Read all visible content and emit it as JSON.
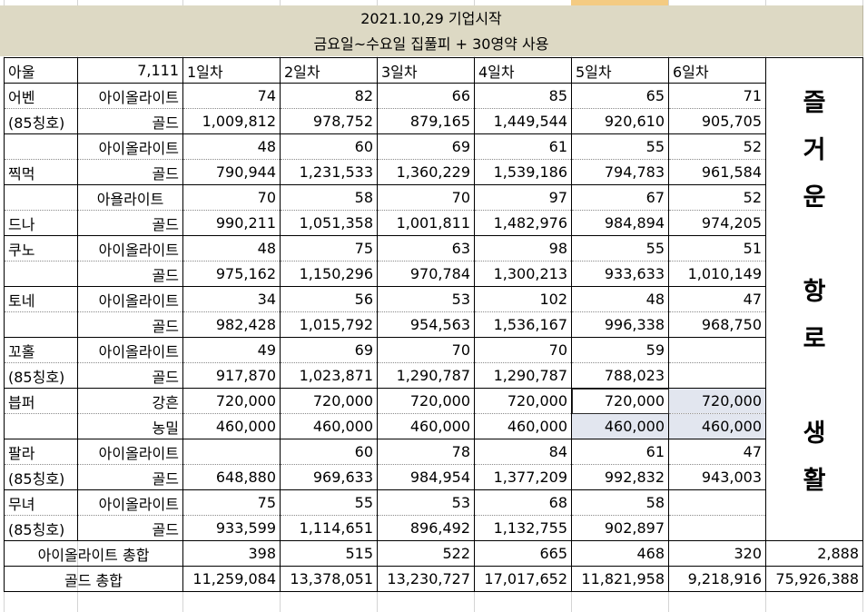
{
  "header": {
    "line1": "2021.10,29 기업시작",
    "line2": "금요일~수요일 집풀피 + 30영약 사용"
  },
  "top_row": {
    "name": "아울",
    "value": "7,111",
    "days": [
      "1일차",
      "2일차",
      "3일차",
      "4일차",
      "5일차",
      "6일차"
    ]
  },
  "side_text": [
    "즐",
    "거",
    "운",
    "",
    "항",
    "로",
    "",
    "생",
    "활"
  ],
  "rows": [
    {
      "name": "어벤",
      "label": "아이올라이트",
      "vals": [
        "74",
        "82",
        "66",
        "85",
        "65",
        "71"
      ]
    },
    {
      "name": "(85칭호)",
      "label": "골드",
      "vals": [
        "1,009,812",
        "978,752",
        "879,165",
        "1,449,544",
        "920,610",
        "905,705"
      ]
    },
    {
      "name": "",
      "label": "아이올라이트",
      "vals": [
        "48",
        "60",
        "69",
        "61",
        "55",
        "52"
      ]
    },
    {
      "name": "찍먹",
      "label": "골드",
      "vals": [
        "790,944",
        "1,231,533",
        "1,360,229",
        "1,539,186",
        "794,783",
        "961,584"
      ]
    },
    {
      "name": "",
      "label": "아욜라이트",
      "vals": [
        "70",
        "58",
        "70",
        "97",
        "67",
        "52"
      ]
    },
    {
      "name": "드나",
      "label": "골드",
      "vals": [
        "990,211",
        "1,051,358",
        "1,001,811",
        "1,482,976",
        "984,894",
        "974,205"
      ]
    },
    {
      "name": "쿠노",
      "label": "아이올라이트",
      "vals": [
        "48",
        "75",
        "63",
        "98",
        "55",
        "51"
      ]
    },
    {
      "name": "",
      "label": "골드",
      "vals": [
        "975,162",
        "1,150,296",
        "970,784",
        "1,300,213",
        "933,633",
        "1,010,149"
      ]
    },
    {
      "name": "토네",
      "label": "아이올라이트",
      "vals": [
        "34",
        "56",
        "53",
        "102",
        "48",
        "47"
      ]
    },
    {
      "name": "",
      "label": "골드",
      "vals": [
        "982,428",
        "1,015,792",
        "954,563",
        "1,536,167",
        "996,338",
        "968,750"
      ]
    },
    {
      "name": "꼬홀",
      "label": "아이올라이트",
      "vals": [
        "49",
        "69",
        "70",
        "70",
        "59",
        ""
      ]
    },
    {
      "name": "(85칭호)",
      "label": "골드",
      "vals": [
        "917,870",
        "1,023,871",
        "1,290,787",
        "1,290,787",
        "788,023",
        ""
      ]
    },
    {
      "name": "븝퍼",
      "label": "강흔",
      "vals": [
        "720,000",
        "720,000",
        "720,000",
        "720,000",
        "720,000",
        "720,000"
      ]
    },
    {
      "name": "",
      "label": "농밀",
      "vals": [
        "460,000",
        "460,000",
        "460,000",
        "460,000",
        "460,000",
        "460,000"
      ]
    },
    {
      "name": "팔라",
      "label": "아이올라이트",
      "vals": [
        "",
        "60",
        "78",
        "84",
        "61",
        "47"
      ]
    },
    {
      "name": "(85칭호)",
      "label": "골드",
      "vals": [
        "648,880",
        "969,633",
        "984,954",
        "1,377,209",
        "992,832",
        "943,003"
      ]
    },
    {
      "name": "무녀",
      "label": "아이올라이트",
      "vals": [
        "75",
        "55",
        "53",
        "68",
        "58",
        ""
      ]
    },
    {
      "name": "(85칭호)",
      "label": "골드",
      "vals": [
        "933,599",
        "1,114,651",
        "896,492",
        "1,132,755",
        "902,897",
        ""
      ]
    }
  ],
  "totals": [
    {
      "label": "아이올라이트 총합",
      "vals": [
        "398",
        "515",
        "522",
        "665",
        "468",
        "320"
      ],
      "sum": "2,888"
    },
    {
      "label": "골드 총합",
      "vals": [
        "11,259,084",
        "13,378,051",
        "13,230,727",
        "17,017,652",
        "11,821,958",
        "9,218,916"
      ],
      "sum": "75,926,388"
    }
  ],
  "colors": {
    "header_bg": "#ddd9c4",
    "selection_bg": "#e2e6ef",
    "column_highlight": "#f4cb82"
  }
}
